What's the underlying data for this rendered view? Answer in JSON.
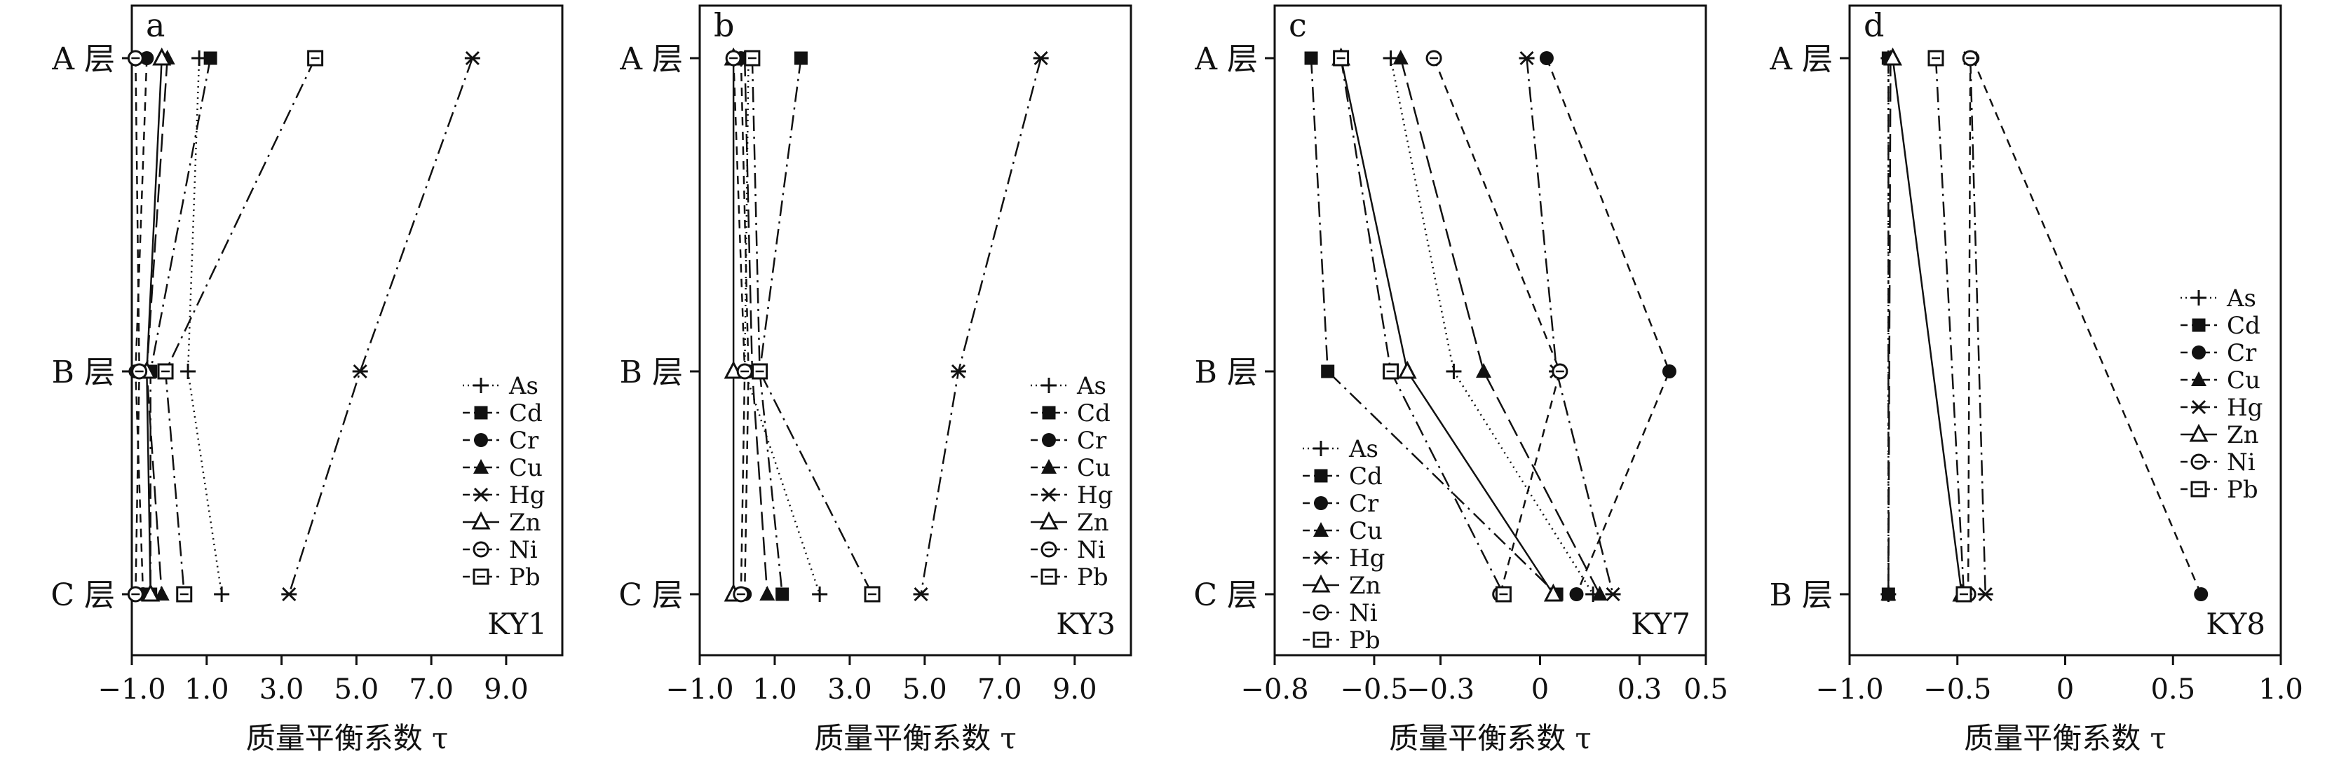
{
  "xlabel": "质量平衡系数 τ",
  "legend_order": [
    "As",
    "Cd",
    "Cr",
    "Cu",
    "Hg",
    "Zn",
    "Ni",
    "Pb"
  ],
  "series_styles": {
    "As": {
      "marker": "plus",
      "dash": "dot"
    },
    "Cd": {
      "marker": "square-filled",
      "dash": "dashdot"
    },
    "Cr": {
      "marker": "circle-filled",
      "dash": "dash"
    },
    "Cu": {
      "marker": "triangle-filled",
      "dash": "longdash"
    },
    "Hg": {
      "marker": "x-star",
      "dash": "dashdot"
    },
    "Zn": {
      "marker": "triangle-open",
      "dash": "solid"
    },
    "Ni": {
      "marker": "circle-open",
      "dash": "dash"
    },
    "Pb": {
      "marker": "square-open",
      "dash": "dashdot"
    }
  },
  "colors": {
    "ink": "#111111",
    "background": "#ffffff"
  },
  "chart_data": [
    {
      "type": "line",
      "panel_letter": "a",
      "profile": "KY1",
      "layers": [
        "A 层",
        "B 层",
        "C 层"
      ],
      "xlim": [
        -1.0,
        10.5
      ],
      "xticks": [
        -1.0,
        1.0,
        3.0,
        5.0,
        7.0,
        9.0
      ],
      "xtick_labels": [
        "−1.0",
        "1.0",
        "3.0",
        "5.0",
        "7.0",
        "9.0"
      ],
      "legend": "right-middle",
      "series": [
        {
          "name": "As",
          "values": [
            0.8,
            0.5,
            1.4
          ]
        },
        {
          "name": "Cd",
          "values": [
            1.1,
            -0.5,
            -0.5
          ]
        },
        {
          "name": "Cr",
          "values": [
            -0.6,
            -0.9,
            -0.7
          ]
        },
        {
          "name": "Cu",
          "values": [
            -0.05,
            -0.6,
            -0.2
          ]
        },
        {
          "name": "Hg",
          "values": [
            8.1,
            5.1,
            3.2
          ]
        },
        {
          "name": "Zn",
          "values": [
            -0.2,
            -0.6,
            -0.5
          ]
        },
        {
          "name": "Ni",
          "values": [
            -0.9,
            -0.8,
            -0.9
          ]
        },
        {
          "name": "Pb",
          "values": [
            3.9,
            -0.1,
            0.4
          ]
        }
      ]
    },
    {
      "type": "line",
      "panel_letter": "b",
      "profile": "KY3",
      "layers": [
        "A 层",
        "B 层",
        "C 层"
      ],
      "xlim": [
        -1.0,
        10.5
      ],
      "xticks": [
        -1.0,
        1.0,
        3.0,
        5.0,
        7.0,
        9.0
      ],
      "xtick_labels": [
        "−1.0",
        "1.0",
        "3.0",
        "5.0",
        "7.0",
        "9.0"
      ],
      "legend": "right-middle",
      "series": [
        {
          "name": "As",
          "values": [
            0.3,
            0.2,
            2.2
          ]
        },
        {
          "name": "Cd",
          "values": [
            1.7,
            0.6,
            1.2
          ]
        },
        {
          "name": "Cr",
          "values": [
            0.1,
            0.3,
            0.2
          ]
        },
        {
          "name": "Cu",
          "values": [
            0.2,
            0.4,
            0.8
          ]
        },
        {
          "name": "Hg",
          "values": [
            8.1,
            5.9,
            4.9
          ]
        },
        {
          "name": "Zn",
          "values": [
            -0.1,
            -0.1,
            -0.1
          ]
        },
        {
          "name": "Ni",
          "values": [
            -0.1,
            0.2,
            0.1
          ]
        },
        {
          "name": "Pb",
          "values": [
            0.4,
            0.6,
            3.6
          ]
        }
      ]
    },
    {
      "type": "line",
      "panel_letter": "c",
      "profile": "KY7",
      "layers": [
        "A 层",
        "B 层",
        "C 层"
      ],
      "xlim": [
        -0.8,
        0.5
      ],
      "xticks": [
        -0.8,
        -0.5,
        -0.3,
        0.0,
        0.3,
        0.5
      ],
      "xtick_labels": [
        "−0.8",
        "−0.5",
        "−0.3",
        "0",
        "0.3",
        "0.5"
      ],
      "legend": "left-bottom",
      "series": [
        {
          "name": "As",
          "values": [
            -0.45,
            -0.26,
            0.16
          ]
        },
        {
          "name": "Cd",
          "values": [
            -0.69,
            -0.64,
            0.05
          ]
        },
        {
          "name": "Cr",
          "values": [
            0.02,
            0.39,
            0.11
          ]
        },
        {
          "name": "Cu",
          "values": [
            -0.42,
            -0.17,
            0.18
          ]
        },
        {
          "name": "Hg",
          "values": [
            -0.04,
            0.05,
            0.22
          ]
        },
        {
          "name": "Zn",
          "values": [
            -0.6,
            -0.4,
            0.04
          ]
        },
        {
          "name": "Ni",
          "values": [
            -0.32,
            0.06,
            -0.12
          ]
        },
        {
          "name": "Pb",
          "values": [
            -0.6,
            -0.45,
            -0.11
          ]
        }
      ]
    },
    {
      "type": "line",
      "panel_letter": "d",
      "profile": "KY8",
      "layers": [
        "A 层",
        "B 层"
      ],
      "xlim": [
        -1.0,
        1.0
      ],
      "xticks": [
        -1.0,
        -0.5,
        0.0,
        0.5,
        1.0
      ],
      "xtick_labels": [
        "−1.0",
        "−0.5",
        "0",
        "0.5",
        "1.0"
      ],
      "legend": "right-middle",
      "series": [
        {
          "name": "As",
          "values": [
            -0.82,
            -0.82
          ]
        },
        {
          "name": "Cd",
          "values": [
            -0.82,
            -0.82
          ]
        },
        {
          "name": "Cr",
          "values": [
            -0.43,
            0.63
          ]
        },
        {
          "name": "Cu",
          "values": [
            -0.81,
            -0.82
          ]
        },
        {
          "name": "Hg",
          "values": [
            -0.44,
            -0.37
          ]
        },
        {
          "name": "Zn",
          "values": [
            -0.8,
            -0.48
          ]
        },
        {
          "name": "Ni",
          "values": [
            -0.44,
            -0.45
          ]
        },
        {
          "name": "Pb",
          "values": [
            -0.6,
            -0.47
          ]
        }
      ]
    }
  ]
}
